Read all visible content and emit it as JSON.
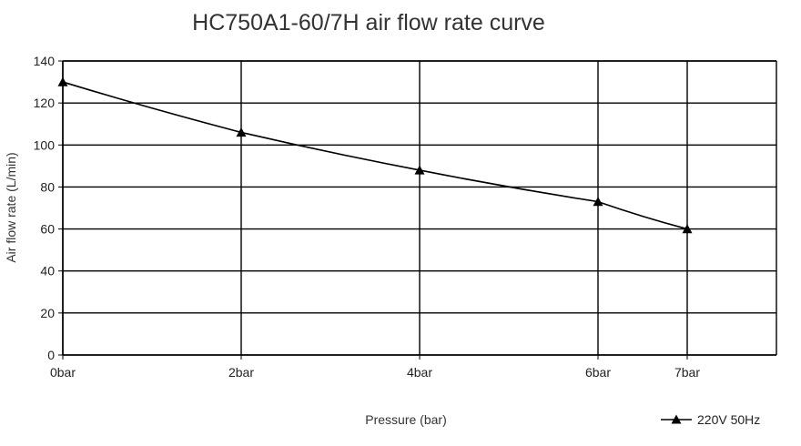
{
  "chart_data": {
    "type": "line",
    "title": "HC750A1-60/7H air flow rate curve",
    "xlabel": "Pressure (bar)",
    "ylabel": "Air flow rate (L/min)",
    "x": [
      0,
      2,
      4,
      6,
      7
    ],
    "x_tick_labels": [
      "0bar",
      "2bar",
      "4bar",
      "6bar",
      "7bar"
    ],
    "y_ticks": [
      0,
      20,
      40,
      60,
      80,
      100,
      120,
      140
    ],
    "xlim": [
      0,
      8
    ],
    "ylim": [
      0,
      140
    ],
    "grid": true,
    "legend_position": "bottom-right",
    "series": [
      {
        "name": "220V 50Hz",
        "marker": "triangle",
        "color": "#000000",
        "values": [
          130,
          106,
          88,
          73,
          60
        ]
      }
    ]
  }
}
